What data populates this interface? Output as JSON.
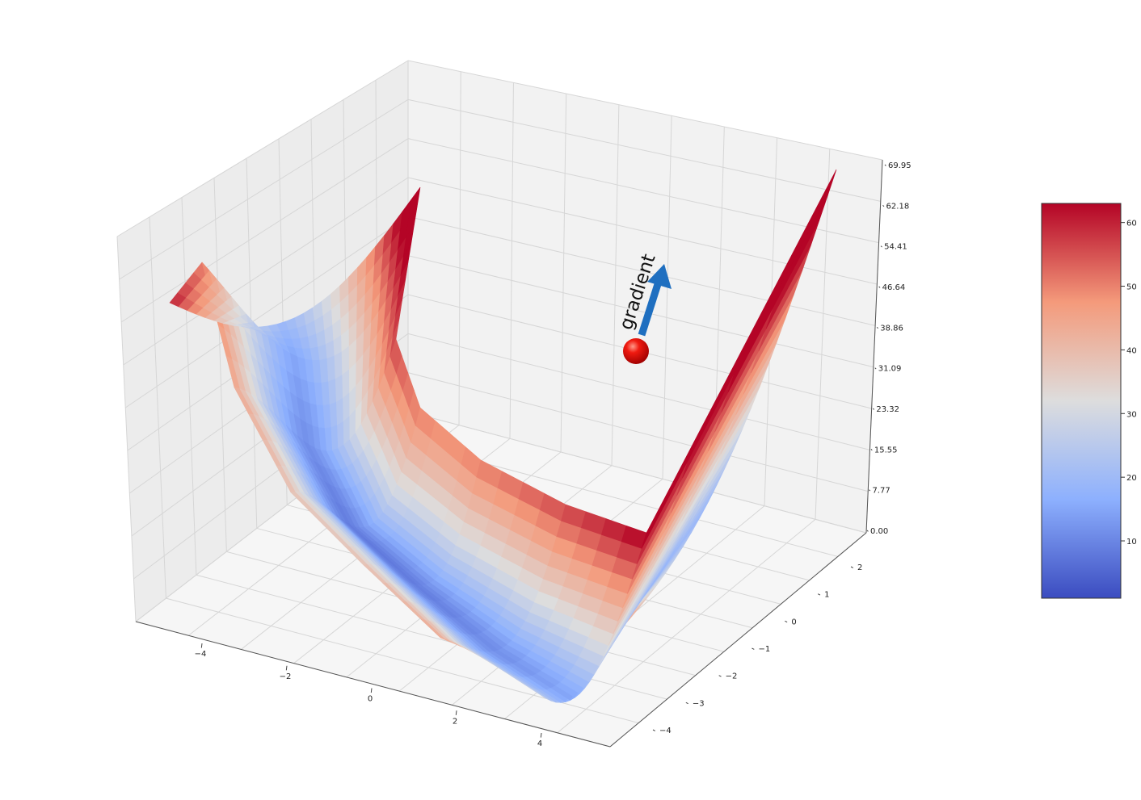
{
  "chart_data": {
    "type": "surface3d",
    "title": "",
    "x_ticks": [
      "−4",
      "−2",
      "0",
      "2",
      "4"
    ],
    "y_ticks": [
      "2",
      "1",
      "0",
      "−1",
      "−2",
      "−3",
      "−4"
    ],
    "z_ticks": [
      "0.00",
      "7.77",
      "15.55",
      "23.32",
      "31.09",
      "38.86",
      "46.64",
      "54.41",
      "62.18",
      "69.95"
    ],
    "zlim": [
      0,
      69.95
    ],
    "colormap": "coolwarm",
    "colorbar": {
      "ticks": [
        "10",
        "20",
        "30",
        "40",
        "50",
        "60"
      ],
      "range": [
        1,
        63
      ]
    },
    "annotation": {
      "label": "gradient",
      "marker": "red sphere on surface",
      "arrow_color": "#1f6fc0"
    },
    "colors": {
      "pane": "#f2f2f2",
      "grid": "#d9d9d9",
      "low": "#3b4cc0",
      "mid": "#dddddd",
      "high": "#b40426",
      "ball": "#e8140c"
    }
  }
}
